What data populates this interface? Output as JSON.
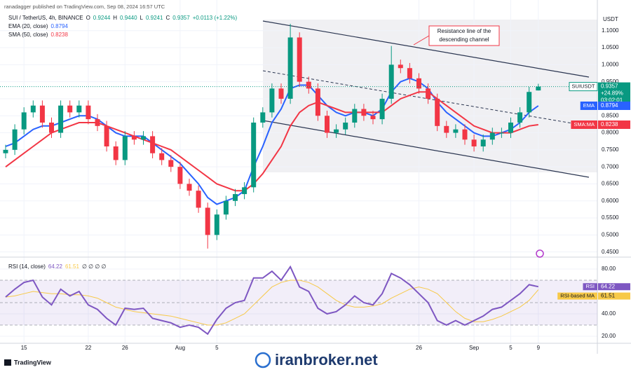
{
  "chart_data": [
    {
      "type": "candlestick",
      "byline": "ranadagger published on TradingView.com, Sep 08, 2024 16:57 UTC",
      "title": "SUI / TetherUS, 4h, BINANCE",
      "ohlc_legend": [
        {
          "key": "O",
          "value": "0.9244"
        },
        {
          "key": "H",
          "value": "0.9440"
        },
        {
          "key": "L",
          "value": "0.9241"
        },
        {
          "key": "C",
          "value": "0.9357"
        }
      ],
      "change": "+0.0113 (+1.22%)",
      "currency": "USDT",
      "categories": [
        null,
        null,
        "15",
        null,
        null,
        null,
        null,
        null,
        null,
        "22",
        null,
        null,
        null,
        "26",
        null,
        null,
        null,
        null,
        null,
        "Aug",
        null,
        null,
        null,
        "5",
        null,
        null,
        null,
        null,
        null,
        null,
        null,
        null,
        null,
        null,
        null,
        null,
        null,
        null,
        null,
        null,
        null,
        null,
        null,
        null,
        null,
        "26",
        null,
        null,
        null,
        null,
        null,
        "Sep",
        null,
        null,
        null,
        "5",
        null,
        null,
        "9"
      ],
      "open": [
        0.74,
        0.75,
        0.81,
        0.86,
        0.88,
        0.83,
        0.8,
        0.88,
        0.86,
        0.88,
        0.84,
        0.82,
        0.76,
        0.72,
        0.79,
        0.78,
        0.79,
        0.74,
        0.72,
        0.7,
        0.65,
        0.63,
        0.58,
        0.5,
        0.56,
        0.6,
        0.62,
        0.64,
        0.83,
        0.86,
        0.93,
        0.9,
        1.08,
        0.95,
        0.93,
        0.85,
        0.8,
        0.81,
        0.83,
        0.87,
        0.85,
        0.84,
        0.9,
        1.0,
        0.99,
        0.96,
        0.93,
        0.9,
        0.82,
        0.8,
        0.81,
        0.78,
        0.76,
        0.78,
        0.8,
        0.8,
        0.83,
        0.86,
        0.9244
      ],
      "high": [
        0.765,
        0.825,
        0.875,
        0.895,
        0.895,
        0.845,
        0.895,
        0.895,
        0.895,
        0.895,
        0.855,
        0.835,
        0.775,
        0.805,
        0.805,
        0.805,
        0.805,
        0.755,
        0.735,
        0.715,
        0.665,
        0.645,
        0.595,
        0.575,
        0.615,
        0.635,
        0.655,
        0.845,
        0.875,
        0.945,
        0.945,
        1.12,
        1.095,
        0.965,
        0.945,
        0.865,
        0.825,
        0.845,
        0.885,
        0.885,
        0.865,
        0.915,
        1.055,
        1.015,
        1.005,
        0.975,
        0.945,
        0.915,
        0.835,
        0.825,
        0.825,
        0.795,
        0.795,
        0.815,
        0.815,
        0.845,
        0.875,
        0.935,
        0.944
      ],
      "low": [
        0.725,
        0.735,
        0.795,
        0.845,
        0.815,
        0.785,
        0.785,
        0.845,
        0.845,
        0.825,
        0.805,
        0.745,
        0.705,
        0.705,
        0.765,
        0.765,
        0.725,
        0.705,
        0.685,
        0.635,
        0.615,
        0.565,
        0.46,
        0.485,
        0.545,
        0.585,
        0.605,
        0.625,
        0.815,
        0.845,
        0.885,
        0.885,
        0.935,
        0.915,
        0.835,
        0.785,
        0.785,
        0.795,
        0.815,
        0.835,
        0.825,
        0.825,
        0.885,
        0.975,
        0.945,
        0.915,
        0.885,
        0.805,
        0.785,
        0.785,
        0.765,
        0.745,
        0.745,
        0.765,
        0.785,
        0.785,
        0.815,
        0.845,
        0.9241
      ],
      "close": [
        0.75,
        0.81,
        0.86,
        0.88,
        0.83,
        0.8,
        0.88,
        0.86,
        0.88,
        0.84,
        0.82,
        0.76,
        0.72,
        0.79,
        0.78,
        0.79,
        0.74,
        0.72,
        0.7,
        0.65,
        0.63,
        0.58,
        0.5,
        0.56,
        0.6,
        0.62,
        0.64,
        0.83,
        0.86,
        0.93,
        0.9,
        1.08,
        0.95,
        0.93,
        0.85,
        0.8,
        0.81,
        0.83,
        0.87,
        0.85,
        0.84,
        0.9,
        1.0,
        0.99,
        0.96,
        0.93,
        0.9,
        0.82,
        0.8,
        0.81,
        0.78,
        0.76,
        0.78,
        0.8,
        0.8,
        0.83,
        0.86,
        0.92,
        0.9357
      ],
      "up_color": "#089981",
      "down_color": "#f23645",
      "series": [
        {
          "name": "EMA (20, close)",
          "badge": "EMA",
          "color": "#2962ff",
          "values": [
            0.76,
            0.77,
            0.79,
            0.81,
            0.82,
            0.82,
            0.83,
            0.84,
            0.85,
            0.85,
            0.84,
            0.82,
            0.8,
            0.79,
            0.79,
            0.79,
            0.77,
            0.75,
            0.73,
            0.71,
            0.68,
            0.65,
            0.61,
            0.59,
            0.6,
            0.61,
            0.63,
            0.7,
            0.76,
            0.83,
            0.87,
            0.93,
            0.94,
            0.94,
            0.91,
            0.88,
            0.86,
            0.85,
            0.86,
            0.86,
            0.85,
            0.87,
            0.92,
            0.95,
            0.96,
            0.95,
            0.93,
            0.89,
            0.86,
            0.84,
            0.82,
            0.8,
            0.79,
            0.79,
            0.8,
            0.81,
            0.83,
            0.86,
            0.8794
          ]
        },
        {
          "name": "SMA (50, close)",
          "badge": "SMA:MA",
          "color": "#f23645",
          "values": [
            0.7,
            0.72,
            0.74,
            0.76,
            0.78,
            0.8,
            0.81,
            0.82,
            0.83,
            0.83,
            0.83,
            0.82,
            0.81,
            0.8,
            0.79,
            0.78,
            0.77,
            0.76,
            0.75,
            0.73,
            0.71,
            0.69,
            0.67,
            0.65,
            0.64,
            0.63,
            0.63,
            0.65,
            0.68,
            0.72,
            0.76,
            0.82,
            0.86,
            0.88,
            0.89,
            0.88,
            0.87,
            0.86,
            0.86,
            0.86,
            0.86,
            0.86,
            0.88,
            0.9,
            0.91,
            0.92,
            0.92,
            0.9,
            0.88,
            0.86,
            0.84,
            0.82,
            0.81,
            0.8,
            0.8,
            0.8,
            0.81,
            0.82,
            0.8238
          ]
        }
      ],
      "price_badge": {
        "symbol": "SUIUSDT",
        "change": "+24.89%",
        "countdown": "03:02:01"
      },
      "annotation": [
        "Resistance line of the",
        "descending channel"
      ],
      "ylim": [
        0.437,
        1.19
      ],
      "yticks": [
        {
          "value": 1.1,
          "label": "1.1000"
        },
        {
          "value": 1.05,
          "label": "1.0500"
        },
        {
          "value": 1.0,
          "label": "1.0000"
        },
        {
          "value": 0.95,
          "label": "0.9500"
        },
        {
          "value": 0.9,
          "label": "0.9000"
        },
        {
          "value": 0.85,
          "label": "0.8500"
        },
        {
          "value": 0.8,
          "label": "0.8000"
        },
        {
          "value": 0.75,
          "label": "0.7500"
        },
        {
          "value": 0.7,
          "label": "0.7000"
        },
        {
          "value": 0.65,
          "label": "0.6500"
        },
        {
          "value": 0.6,
          "label": "0.6000"
        },
        {
          "value": 0.55,
          "label": "0.5500"
        },
        {
          "value": 0.5,
          "label": "0.5000"
        },
        {
          "value": 0.45,
          "label": "0.4500"
        }
      ],
      "grid": true
    },
    {
      "type": "line",
      "title": "RSI (14, close)",
      "legend_extra": "∅ ∅ ∅ ∅",
      "series": [
        {
          "name": "RSI",
          "color": "#7e57c2",
          "values": [
            55,
            62,
            68,
            70,
            55,
            48,
            62,
            56,
            60,
            48,
            44,
            36,
            30,
            45,
            44,
            45,
            36,
            34,
            32,
            28,
            30,
            28,
            22,
            35,
            45,
            50,
            52,
            72,
            72,
            78,
            70,
            82,
            64,
            60,
            45,
            40,
            42,
            48,
            56,
            50,
            48,
            58,
            76,
            72,
            66,
            58,
            50,
            34,
            30,
            34,
            30,
            34,
            38,
            44,
            46,
            52,
            58,
            66,
            64.22
          ]
        },
        {
          "name": "RSI-based MA",
          "color": "#f7c948",
          "values": [
            55,
            56,
            58,
            60,
            59,
            58,
            58,
            57,
            57,
            56,
            54,
            50,
            46,
            44,
            42,
            41,
            40,
            39,
            38,
            36,
            34,
            32,
            30,
            30,
            32,
            36,
            40,
            48,
            56,
            64,
            68,
            70,
            70,
            68,
            64,
            58,
            52,
            48,
            46,
            46,
            47,
            49,
            54,
            58,
            62,
            64,
            62,
            58,
            50,
            42,
            36,
            33,
            33,
            35,
            38,
            42,
            46,
            52,
            61.51
          ]
        }
      ],
      "band": [
        30,
        70
      ],
      "midline": 50,
      "ylim": [
        13.75,
        90
      ],
      "yticks": [
        {
          "value": 80,
          "label": "80.00"
        },
        {
          "value": 40,
          "label": "40.00"
        },
        {
          "value": 20,
          "label": "20.00"
        }
      ],
      "grid": true
    }
  ],
  "footer": {
    "logo": "TradingView",
    "watermark": "iranbroker.net"
  }
}
